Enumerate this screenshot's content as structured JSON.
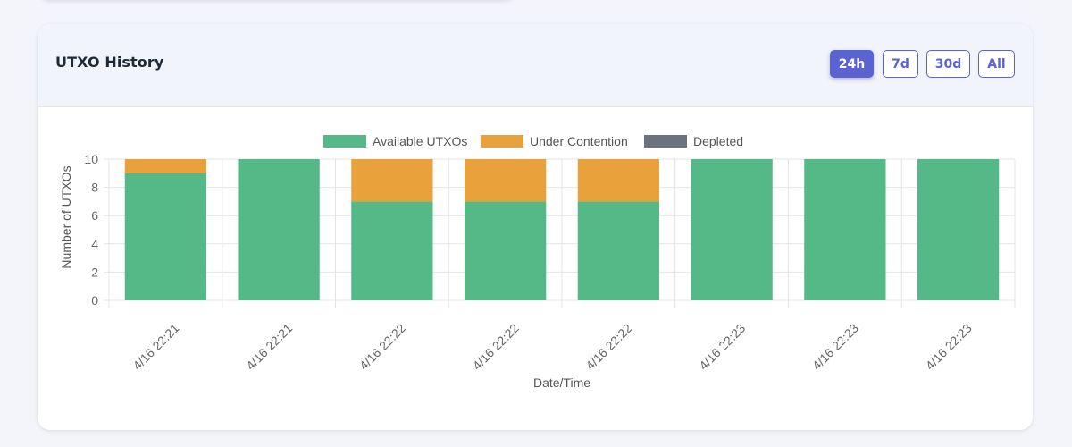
{
  "card": {
    "title": "UTXO History"
  },
  "time_range": {
    "options": [
      "24h",
      "7d",
      "30d",
      "All"
    ],
    "selected": "24h"
  },
  "colors": {
    "available": "#54b887",
    "contention": "#e9a13b",
    "depleted": "#6b7280",
    "accent": "#5b63d3"
  },
  "chart_data": {
    "type": "bar",
    "stacked": true,
    "categories": [
      "4/16 22:21",
      "4/16 22:21",
      "4/16 22:22",
      "4/16 22:22",
      "4/16 22:22",
      "4/16 22:23",
      "4/16 22:23",
      "4/16 22:23"
    ],
    "series": [
      {
        "name": "Available UTXOs",
        "values": [
          9,
          10,
          7,
          7,
          7,
          10,
          10,
          10
        ]
      },
      {
        "name": "Under Contention",
        "values": [
          1,
          0,
          3,
          3,
          3,
          0,
          0,
          0
        ]
      },
      {
        "name": "Depleted",
        "values": [
          0,
          0,
          0,
          0,
          0,
          0,
          0,
          0
        ]
      }
    ],
    "xlabel": "Date/Time",
    "ylabel": "Number of UTXOs",
    "ylim": [
      0,
      10
    ],
    "yticks": [
      0,
      2,
      4,
      6,
      8,
      10
    ],
    "grid": true,
    "legend": "top"
  }
}
